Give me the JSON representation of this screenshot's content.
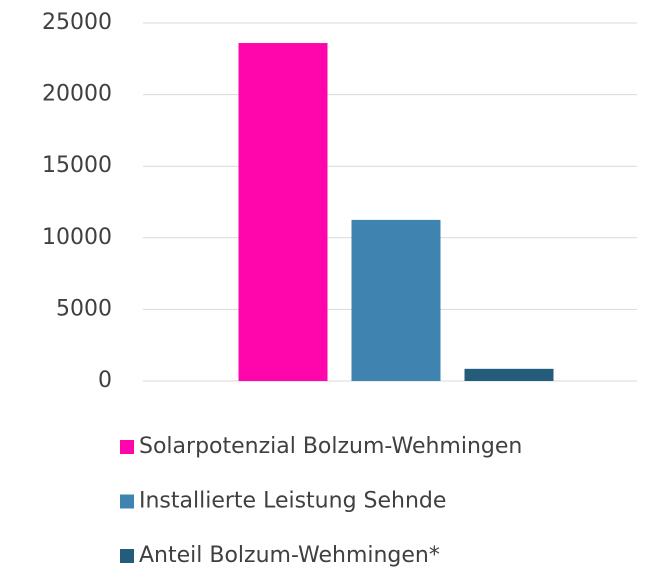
{
  "chart_data": {
    "type": "bar",
    "categories": [
      null
    ],
    "series": [
      {
        "name": "Solarpotenzial Bolzum-Wehmingen",
        "color": "#ff05ac",
        "values": [
          23600
        ]
      },
      {
        "name": "Installierte Leistung Sehnde",
        "color": "#3f84b1",
        "values": [
          11250
        ]
      },
      {
        "name": "Anteil Bolzum-Wehmingen*",
        "color": "#245d7c",
        "values": [
          850
        ]
      }
    ],
    "ylim": [
      0,
      25000
    ],
    "yticks": [
      0,
      5000,
      10000,
      15000,
      20000,
      25000
    ],
    "grid": true,
    "legend": "bottom"
  }
}
